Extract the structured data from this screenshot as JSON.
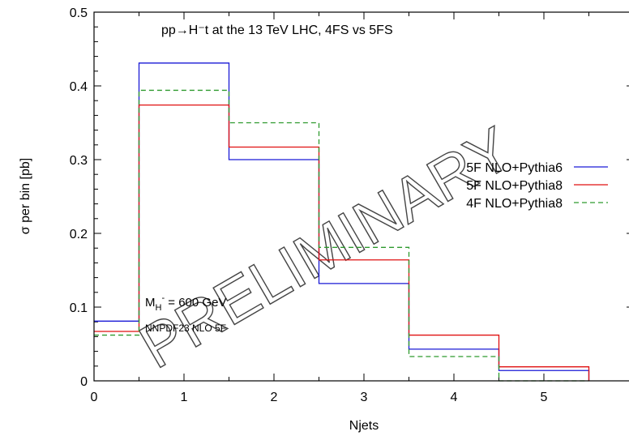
{
  "chart_data": {
    "type": "line",
    "step": true,
    "title": "pp→H⁻t at the 13 TeV LHC, 4FS vs 5FS",
    "xlabel": "Njets",
    "ylabel": "σ per bin [pb]",
    "xlim": [
      0,
      6
    ],
    "ylim": [
      0,
      0.5
    ],
    "xticks": [
      0,
      1,
      2,
      3,
      4,
      5
    ],
    "yticks": [
      0,
      0.1,
      0.2,
      0.3,
      0.4,
      0.5
    ],
    "xtick_labels": [
      "0",
      "1",
      "2",
      "3",
      "4",
      "5"
    ],
    "ytick_labels": [
      "0",
      "0.1",
      "0.2",
      "0.3",
      "0.4",
      "0.5"
    ],
    "bins": [
      "0",
      "1",
      "2",
      "3",
      "4",
      "5"
    ],
    "series": [
      {
        "name": "5F NLO+Pythia6",
        "color": "#1a1ad6",
        "dash": "solid",
        "values": [
          0.081,
          0.431,
          0.3,
          0.132,
          0.043,
          0.014
        ]
      },
      {
        "name": "5F NLO+Pythia8",
        "color": "#e01010",
        "dash": "solid",
        "values": [
          0.067,
          0.374,
          0.317,
          0.164,
          0.062,
          0.019
        ]
      },
      {
        "name": "4F NLO+Pythia8",
        "color": "#2e9a2e",
        "dash": "dashed",
        "values": [
          0.062,
          0.394,
          0.35,
          0.181,
          0.033,
          0.0
        ]
      }
    ],
    "legend_position": "right",
    "annotations": {
      "mass_main": "M",
      "mass_sub": "H",
      "mass_sup": "-",
      "mass_value": " = 600 GeV",
      "pdf": "NNPDF23 NLO 5F"
    },
    "watermark": "PRELIMINARY",
    "grid": false
  }
}
